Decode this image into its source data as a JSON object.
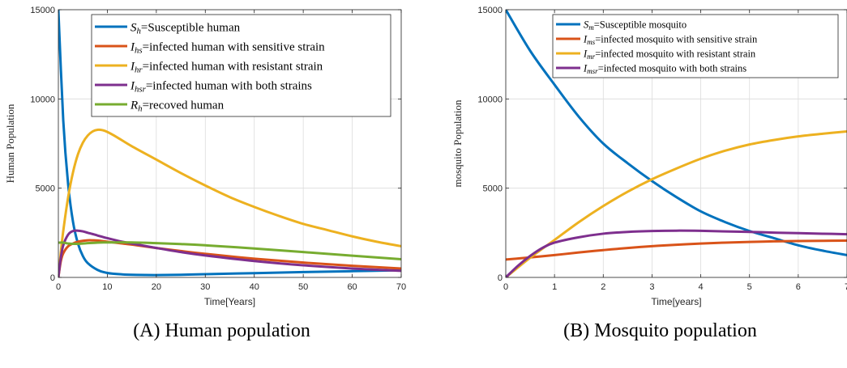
{
  "chart_data": [
    {
      "type": "line",
      "caption": "(A) Human population",
      "xlabel": "Time[Years]",
      "ylabel": "Human Population",
      "xlim": [
        0,
        70
      ],
      "ylim": [
        0,
        15000
      ],
      "xticks": [
        "0",
        "10",
        "20",
        "30",
        "40",
        "50",
        "60",
        "70"
      ],
      "yticks": [
        "0",
        "5000",
        "10000",
        "15000"
      ],
      "grid": true,
      "legend_position": "top-right",
      "series": [
        {
          "sym": "S",
          "sub": "h",
          "desc": "=Susceptible human",
          "color": "#0072BD",
          "x": [
            0,
            1,
            2,
            3,
            4,
            5,
            6,
            8,
            10,
            13,
            16,
            20,
            25,
            30,
            40,
            50,
            60,
            70
          ],
          "y": [
            15000,
            8800,
            5200,
            3100,
            1900,
            1200,
            800,
            420,
            250,
            170,
            140,
            130,
            150,
            180,
            240,
            300,
            350,
            400
          ]
        },
        {
          "sym": "I",
          "sub": "hs",
          "desc": "=infected human with sensitive strain",
          "color": "#D95319",
          "x": [
            0,
            0.5,
            1,
            2,
            3,
            4,
            5,
            6,
            7,
            8,
            10,
            13,
            16,
            20,
            25,
            30,
            40,
            50,
            60,
            70
          ],
          "y": [
            0,
            900,
            1350,
            1750,
            1900,
            2000,
            2050,
            2080,
            2080,
            2070,
            2000,
            1900,
            1800,
            1650,
            1480,
            1320,
            1050,
            830,
            650,
            500
          ]
        },
        {
          "sym": "I",
          "sub": "hr",
          "desc": "=infected human with resistant strain",
          "color": "#EDB120",
          "x": [
            0,
            0.5,
            1,
            2,
            3,
            4,
            5,
            6,
            7,
            8,
            9,
            10,
            12,
            15,
            20,
            25,
            30,
            35,
            40,
            45,
            50,
            55,
            60,
            65,
            70
          ],
          "y": [
            0,
            1400,
            2600,
            4500,
            5900,
            6900,
            7550,
            7950,
            8180,
            8270,
            8250,
            8150,
            7850,
            7350,
            6600,
            5850,
            5150,
            4500,
            3950,
            3450,
            3000,
            2650,
            2300,
            2000,
            1750
          ]
        },
        {
          "sym": "I",
          "sub": "hsr",
          "desc": "=infected human with both strains",
          "color": "#7E2F8E",
          "x": [
            0,
            0.5,
            1,
            2,
            3,
            4,
            5,
            6,
            7,
            8,
            10,
            13,
            16,
            20,
            25,
            30,
            40,
            50,
            60,
            70
          ],
          "y": [
            0,
            1100,
            1800,
            2400,
            2600,
            2620,
            2580,
            2500,
            2430,
            2350,
            2200,
            2000,
            1850,
            1650,
            1420,
            1230,
            920,
            680,
            500,
            370
          ]
        },
        {
          "sym": "R",
          "sub": "h",
          "desc": "=recoved human",
          "color": "#77AC30",
          "x": [
            0,
            1,
            2,
            3,
            5,
            8,
            10,
            15,
            20,
            25,
            30,
            40,
            50,
            60,
            70
          ],
          "y": [
            1950,
            1950,
            1900,
            1880,
            1900,
            1950,
            1960,
            1960,
            1920,
            1870,
            1800,
            1620,
            1420,
            1220,
            1020
          ]
        }
      ]
    },
    {
      "type": "line",
      "caption": "(B) Mosquito population",
      "xlabel": "Time[years]",
      "ylabel": "mosquito Population",
      "xlim": [
        0,
        7
      ],
      "ylim": [
        0,
        15000
      ],
      "xticks": [
        "0",
        "1",
        "2",
        "3",
        "4",
        "5",
        "6",
        "7"
      ],
      "yticks": [
        "0",
        "5000",
        "10000",
        "15000"
      ],
      "grid": true,
      "legend_position": "top-right",
      "series": [
        {
          "sym": "S",
          "sub": "m",
          "desc": "=Susceptible mosquito",
          "color": "#0072BD",
          "x": [
            0,
            0.5,
            1,
            1.5,
            2,
            2.5,
            3,
            3.5,
            4,
            4.5,
            5,
            5.5,
            6,
            6.5,
            7
          ],
          "y": [
            15000,
            12700,
            10800,
            9000,
            7500,
            6400,
            5400,
            4500,
            3700,
            3100,
            2600,
            2200,
            1800,
            1500,
            1250
          ]
        },
        {
          "sym": "I",
          "sub": "ms",
          "desc": "=infected mosquito with sensitive strain",
          "color": "#D95319",
          "x": [
            0,
            0.5,
            1,
            1.5,
            2,
            2.5,
            3,
            3.5,
            4,
            4.5,
            5,
            5.5,
            6,
            6.5,
            7
          ],
          "y": [
            1000,
            1120,
            1250,
            1400,
            1530,
            1650,
            1750,
            1830,
            1900,
            1950,
            1990,
            2020,
            2040,
            2050,
            2060
          ]
        },
        {
          "sym": "I",
          "sub": "mr",
          "desc": "=infected mosquito with resistant strain",
          "color": "#EDB120",
          "x": [
            0,
            0.5,
            1,
            1.5,
            2,
            2.5,
            3,
            3.5,
            4,
            4.5,
            5,
            5.5,
            6,
            6.5,
            7
          ],
          "y": [
            0,
            1100,
            2100,
            3100,
            4000,
            4800,
            5500,
            6100,
            6650,
            7100,
            7450,
            7700,
            7900,
            8050,
            8180
          ]
        },
        {
          "sym": "I",
          "sub": "msr",
          "desc": "=infected mosquito with both strains",
          "color": "#7E2F8E",
          "x": [
            0,
            0.25,
            0.5,
            0.75,
            1,
            1.5,
            2,
            2.5,
            3,
            3.5,
            4,
            4.5,
            5,
            5.5,
            6,
            6.5,
            7
          ],
          "y": [
            0,
            650,
            1200,
            1650,
            1950,
            2250,
            2450,
            2550,
            2600,
            2620,
            2610,
            2580,
            2550,
            2510,
            2480,
            2450,
            2420
          ]
        }
      ]
    }
  ]
}
